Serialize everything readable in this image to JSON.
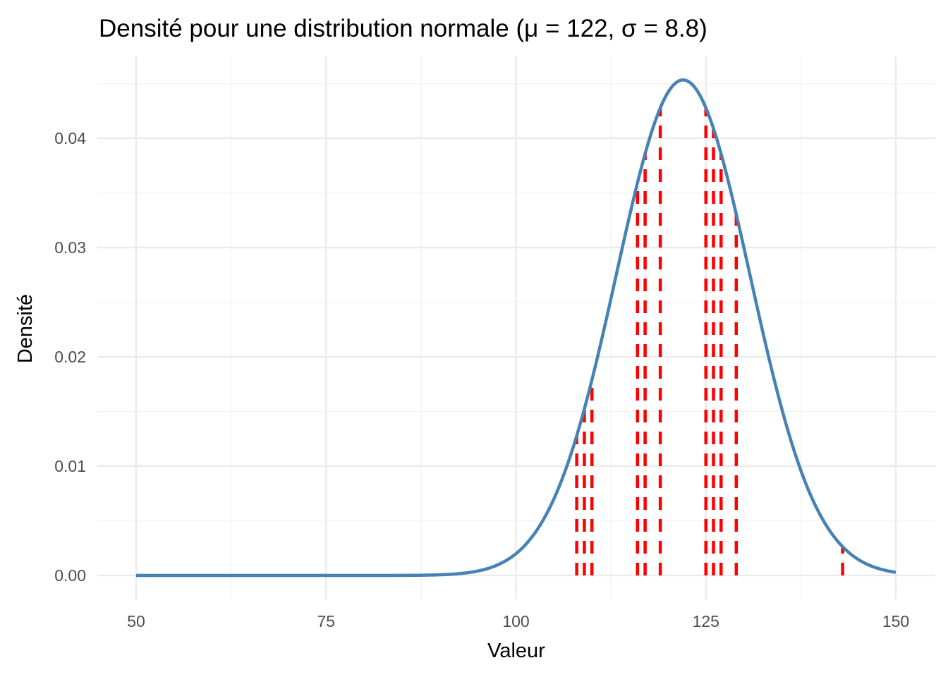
{
  "chart_data": {
    "type": "line",
    "title": "Densité pour une distribution normale (μ = 122, σ = 8.8)",
    "xlabel": "Valeur",
    "ylabel": "Densité",
    "xlim": [
      50,
      150
    ],
    "ylim": [
      0,
      0.0453
    ],
    "x_ticks": [
      50,
      75,
      100,
      125,
      150
    ],
    "x_tick_labels": [
      "50",
      "75",
      "100",
      "125",
      "150"
    ],
    "y_ticks": [
      0,
      0.01,
      0.02,
      0.03,
      0.04
    ],
    "y_tick_labels": [
      "0.00",
      "0.01",
      "0.02",
      "0.03",
      "0.04"
    ],
    "grid": true,
    "legend": "none",
    "curve": {
      "mu": 122,
      "sigma": 8.8,
      "x_start": 50,
      "x_end": 150,
      "color": "#4682B4"
    },
    "segments": {
      "color": "#FF0000",
      "linetype": "dashed",
      "x": [
        108,
        109,
        110,
        116,
        117,
        119,
        125,
        126,
        127,
        129,
        143
      ]
    }
  }
}
